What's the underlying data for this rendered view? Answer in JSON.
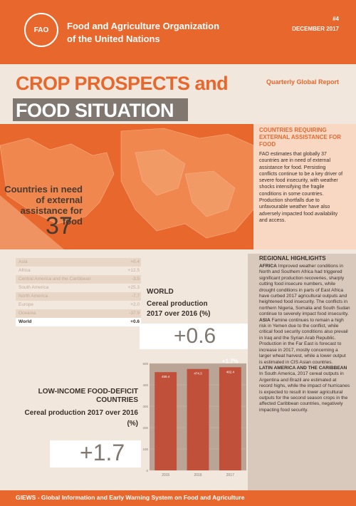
{
  "header": {
    "org_line1": "Food and Agriculture Organization",
    "org_line2": "of the United Nations",
    "issue_no": "#4",
    "issue_date": "DECEMBER 2017",
    "logo_text": "FAO"
  },
  "title": {
    "line1": "CROP PROSPECTS and",
    "line2": "FOOD SITUATION",
    "subtitle": "Quarterly Global Report"
  },
  "countries_need": {
    "label": "Countries in need of external assistance for food",
    "value": "37"
  },
  "side_box": {
    "heading": "COUNTRIES REQUIRING EXTERNAL ASSISTANCE FOR FOOD",
    "body": "FAO estimates that globally 37 countries are in need of external assistance for food. Persisting conflicts continue to be a key driver of severe food insecurity, with weather shocks intensifying the fragile conditions in some countries. Production shortfalls due to unfavourable weather have also adversely impacted food availability and access."
  },
  "regional_table": [
    {
      "region": "Asia",
      "value": "+0.4"
    },
    {
      "region": "Africa",
      "value": "+12.5"
    },
    {
      "region": "Central America and the Caribbean",
      "value": "-3.5"
    },
    {
      "region": "South America",
      "value": "+25.3"
    },
    {
      "region": "North America",
      "value": "-7.7"
    },
    {
      "region": "Europe",
      "value": "+2.0"
    },
    {
      "region": "Oceania",
      "value": "-37.9"
    },
    {
      "region": "World",
      "value": "+0.6"
    }
  ],
  "world": {
    "label": "WORLD",
    "subtitle": "Cereal production 2017 over 2016 (%)",
    "value": "+0.6"
  },
  "lifdc": {
    "label": "LOW-INCOME FOOD-DEFICIT COUNTRIES",
    "subtitle": "Cereal production 2017 over 2016 (%)",
    "value": "+1.7"
  },
  "regional_highlights": {
    "title": "REGIONAL HIGHLIGHTS",
    "africa_label": "AFRICA",
    "africa_text": "Improved weather conditions in North and Southern Africa had triggered significant production recoveries, sharply cutting food insecure numbers, while drought conditions in parts of East Africa have curbed 2017 agricultural outputs and heightened food insecurity. The conflicts in northern Nigeria, Somalia and South Sudan continue to severely impact food insecurity.",
    "asia_label": "ASIA",
    "asia_text": "Famine continues to remain a high risk in Yemen due to the conflict, while critical food security conditions also prevail in Iraq and the Syrian Arab Republic. Production in the Far East is forecast to increase in 2017, mostly concerning a larger wheat harvest, while a lower output is estimated in CIS Asian countries.",
    "lac_label": "LATIN AMERICA AND THE CARIBBEAN",
    "lac_text": "In South America, 2017 cereal outputs in Argentina and Brazil are estimated at record highs, while the impact of hurricanes is expected to result in lower agricultural outputs for the second season crops in the affected Caribbean countries, negatively impacting food security."
  },
  "footer": {
    "text": "GIEWS - Global Information and Early Warning System on Food and Agriculture"
  },
  "chart_data": {
    "type": "bar",
    "categories": [
      "2015",
      "2016",
      "2017"
    ],
    "values": [
      459.4,
      474.3,
      482.4
    ],
    "value_labels": [
      "459.4",
      "474.3",
      "482.4"
    ],
    "annotation": "+1.7%",
    "ylim": [
      0,
      500
    ],
    "yticks": [
      "0",
      "100",
      "200",
      "300",
      "400",
      "500"
    ],
    "bar_color": "#c0503a"
  }
}
